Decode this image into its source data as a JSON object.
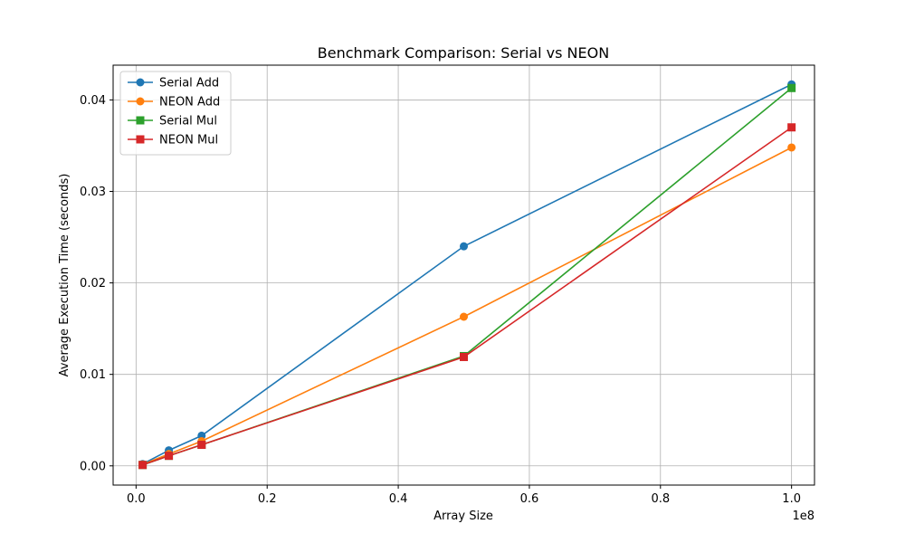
{
  "chart_data": {
    "type": "line",
    "title": "Benchmark Comparison: Serial vs NEON",
    "xlabel": "Array Size",
    "ylabel": "Average Execution Time (seconds)",
    "x_offset_label": "1e8",
    "x_scale": 100000000,
    "xlim": [
      -3500000,
      103500000
    ],
    "ylim": [
      -0.0021,
      0.0438
    ],
    "x_ticks": [
      0,
      20000000,
      40000000,
      60000000,
      80000000,
      100000000
    ],
    "x_tick_labels": [
      "0.0",
      "0.2",
      "0.4",
      "0.6",
      "0.8",
      "1.0"
    ],
    "y_ticks": [
      0,
      0.01,
      0.02,
      0.03,
      0.04
    ],
    "y_tick_labels": [
      "0.00",
      "0.01",
      "0.02",
      "0.03",
      "0.04"
    ],
    "grid": true,
    "legend_position": "top-left",
    "x": [
      1000000,
      5000000,
      10000000,
      50000000,
      100000000
    ],
    "series": [
      {
        "name": "Serial Add",
        "marker": "circle",
        "color": "#1f77b4",
        "values": [
          0.0002,
          0.0017,
          0.0033,
          0.024,
          0.0417
        ]
      },
      {
        "name": "NEON Add",
        "marker": "circle",
        "color": "#ff7f0e",
        "values": [
          0.00015,
          0.0013,
          0.0027,
          0.0163,
          0.0348
        ]
      },
      {
        "name": "Serial Mul",
        "marker": "square",
        "color": "#2ca02c",
        "values": [
          0.0001,
          0.0011,
          0.0023,
          0.012,
          0.0413
        ]
      },
      {
        "name": "NEON Mul",
        "marker": "square",
        "color": "#d62728",
        "values": [
          0.0001,
          0.0011,
          0.0023,
          0.0119,
          0.037
        ]
      }
    ]
  }
}
